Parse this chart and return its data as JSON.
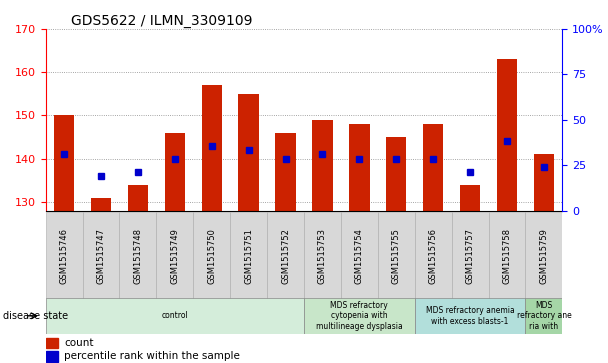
{
  "title": "GDS5622 / ILMN_3309109",
  "samples": [
    "GSM1515746",
    "GSM1515747",
    "GSM1515748",
    "GSM1515749",
    "GSM1515750",
    "GSM1515751",
    "GSM1515752",
    "GSM1515753",
    "GSM1515754",
    "GSM1515755",
    "GSM1515756",
    "GSM1515757",
    "GSM1515758",
    "GSM1515759"
  ],
  "counts": [
    150,
    131,
    134,
    146,
    157,
    155,
    146,
    149,
    148,
    145,
    148,
    134,
    163,
    141
  ],
  "percentile_values": [
    141,
    136,
    137,
    140,
    143,
    142,
    140,
    141,
    140,
    140,
    140,
    137,
    144,
    138
  ],
  "ylim_left": [
    128,
    170
  ],
  "ylim_right": [
    0,
    100
  ],
  "yticks_left": [
    130,
    140,
    150,
    160,
    170
  ],
  "yticks_right": [
    0,
    25,
    50,
    75,
    100
  ],
  "bar_color": "#cc2200",
  "dot_color": "#0000cc",
  "bar_width": 0.55,
  "disease_groups": [
    {
      "label": "control",
      "start": 0,
      "end": 7,
      "color": "#d4edda"
    },
    {
      "label": "MDS refractory\ncytopenia with\nmultilineage dysplasia",
      "start": 7,
      "end": 10,
      "color": "#c8e6c9"
    },
    {
      "label": "MDS refractory anemia\nwith excess blasts-1",
      "start": 10,
      "end": 13,
      "color": "#b2dfdb"
    },
    {
      "label": "MDS\nrefractory ane\nria with",
      "start": 13,
      "end": 14,
      "color": "#a5d6a7"
    }
  ],
  "disease_state_label": "disease state",
  "legend_count_label": "count",
  "legend_percentile_label": "percentile rank within the sample",
  "grid_color": "#888888",
  "xtick_bg_color": "#d8d8d8",
  "spine_bottom_color": "#000000"
}
